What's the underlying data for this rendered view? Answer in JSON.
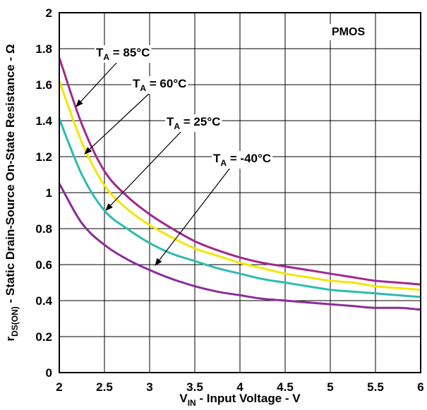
{
  "chart_data": {
    "type": "line",
    "corner_label": "PMOS",
    "x_label": {
      "symbol": "V",
      "sub": "IN",
      "text": " - Input Voltage - V"
    },
    "y_label": {
      "symbol": "r",
      "sub": "DS(ON)",
      "text": " - Static Drain-Source On-State Resistance - Ω"
    },
    "xlim": [
      2,
      6
    ],
    "ylim": [
      0,
      2
    ],
    "grid": true,
    "x_ticks": [
      "2",
      "2.5",
      "3",
      "3.5",
      "4",
      "4.5",
      "5",
      "5.5",
      "6"
    ],
    "y_ticks": [
      "0",
      "0.2",
      "0.4",
      "0.6",
      "0.8",
      "1",
      "1.2",
      "1.4",
      "1.6",
      "1.8",
      "2"
    ],
    "x": [
      2,
      2.25,
      2.5,
      2.75,
      3,
      3.25,
      3.5,
      3.75,
      4,
      4.25,
      4.5,
      4.75,
      5,
      5.25,
      5.5,
      5.75,
      6
    ],
    "series": [
      {
        "name": "85°C",
        "prefix": "T",
        "sub": "A",
        "text": " = 85°C",
        "color": "#a0288c",
        "values": [
          1.75,
          1.38,
          1.12,
          0.98,
          0.88,
          0.8,
          0.73,
          0.68,
          0.64,
          0.61,
          0.59,
          0.57,
          0.55,
          0.53,
          0.51,
          0.5,
          0.49
        ]
      },
      {
        "name": "60°C",
        "prefix": "T",
        "sub": "A",
        "text": " = 60°C",
        "color": "#f2e600",
        "values": [
          1.62,
          1.28,
          1.04,
          0.91,
          0.82,
          0.75,
          0.69,
          0.65,
          0.61,
          0.58,
          0.55,
          0.53,
          0.51,
          0.5,
          0.48,
          0.47,
          0.46
        ]
      },
      {
        "name": "25°C",
        "prefix": "T",
        "sub": "A",
        "text": " = 25°C",
        "color": "#2cbcb0",
        "values": [
          1.41,
          1.1,
          0.9,
          0.8,
          0.72,
          0.66,
          0.62,
          0.58,
          0.55,
          0.52,
          0.5,
          0.48,
          0.46,
          0.45,
          0.44,
          0.43,
          0.42
        ]
      },
      {
        "name": "-40°C",
        "prefix": "T",
        "sub": "A",
        "text": " = -40°C",
        "color": "#8a2c9a",
        "values": [
          1.05,
          0.83,
          0.71,
          0.63,
          0.57,
          0.52,
          0.48,
          0.45,
          0.43,
          0.41,
          0.4,
          0.39,
          0.38,
          0.37,
          0.36,
          0.36,
          0.35
        ]
      }
    ]
  }
}
